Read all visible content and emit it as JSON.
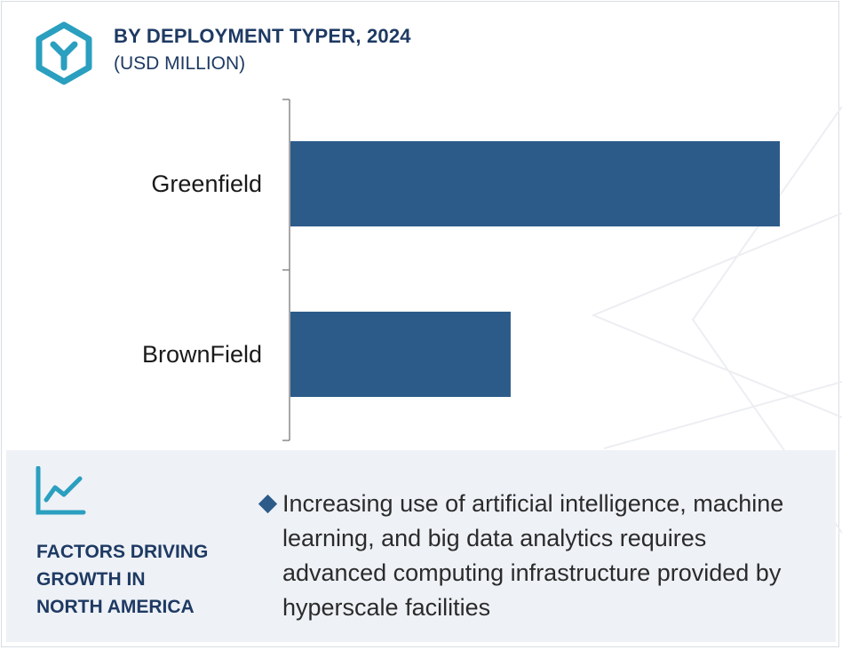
{
  "header": {
    "title": "BY DEPLOYMENT TYPER, 2024",
    "subtitle": "(USD MILLION)",
    "icon": "hexagon-logo-icon"
  },
  "chart_data": {
    "type": "bar",
    "orientation": "horizontal",
    "categories": [
      "Greenfield",
      "BrownField"
    ],
    "values": [
      100,
      45
    ],
    "value_note": "relative bar lengths; no axis values printed",
    "bar_color": "#2c5b8a",
    "grid": false,
    "legend": false
  },
  "factors": {
    "icon": "line-chart-icon",
    "title_lines": [
      "FACTORS DRIVING",
      "GROWTH IN",
      "NORTH AMERICA"
    ],
    "bullet": "Increasing use of artificial intelligence, machine learning, and big data analytics requires advanced computing infrastructure provided by hyperscale facilities"
  },
  "colors": {
    "accent": "#2a9fbf",
    "title": "#1e3a63",
    "bar": "#2c5b8a",
    "panel": "#eef1f6"
  }
}
